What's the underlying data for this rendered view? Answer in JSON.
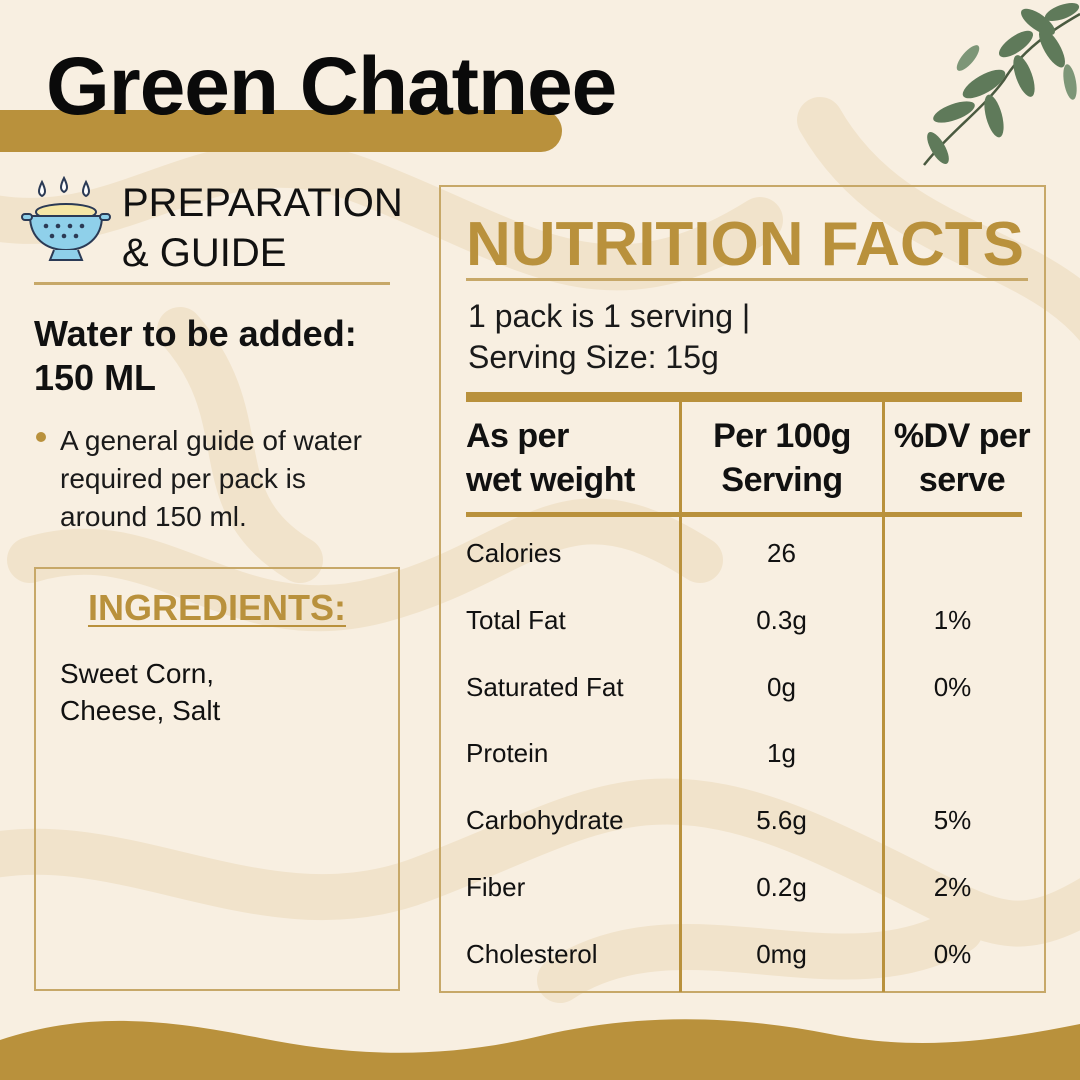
{
  "title": "Green Chatnee",
  "colors": {
    "accent": "#b9913c",
    "background": "#f8efe1",
    "border": "#c7a868",
    "text": "#111111"
  },
  "decorations": {
    "leaves": "leaf-branch-icon",
    "prep_icon": "colander-icon"
  },
  "preparation": {
    "heading_line1": "PREPARATION",
    "heading_line2": "& GUIDE",
    "water_label": "Water to be added:",
    "water_amount": "150 ML",
    "bullet_line1": "A general guide of water",
    "bullet_line2": "required per pack is",
    "bullet_line3": "around 150 ml."
  },
  "ingredients": {
    "title": "INGREDIENTS:",
    "line1": "Sweet Corn,",
    "line2": "Cheese, Salt"
  },
  "nutrition": {
    "title": "NUTRITION FACTS",
    "serving_line1": "1 pack is 1 serving |",
    "serving_line2": "Serving Size: 15g",
    "headers": {
      "col1_line1": "As per",
      "col1_line2": "wet weight",
      "col2_line1": "Per 100g",
      "col2_line2": "Serving",
      "col3_line1": "%DV per",
      "col3_line2": "serve"
    },
    "rows": [
      {
        "name": "Calories",
        "per100g": "26",
        "dv": ""
      },
      {
        "name": "Total Fat",
        "per100g": "0.3g",
        "dv": "1%"
      },
      {
        "name": "Saturated Fat",
        "per100g": "0g",
        "dv": "0%"
      },
      {
        "name": "Protein",
        "per100g": "1g",
        "dv": ""
      },
      {
        "name": "Carbohydrate",
        "per100g": "5.6g",
        "dv": "5%"
      },
      {
        "name": "Fiber",
        "per100g": "0.2g",
        "dv": "2%"
      },
      {
        "name": "Cholesterol",
        "per100g": "0mg",
        "dv": "0%"
      }
    ]
  }
}
